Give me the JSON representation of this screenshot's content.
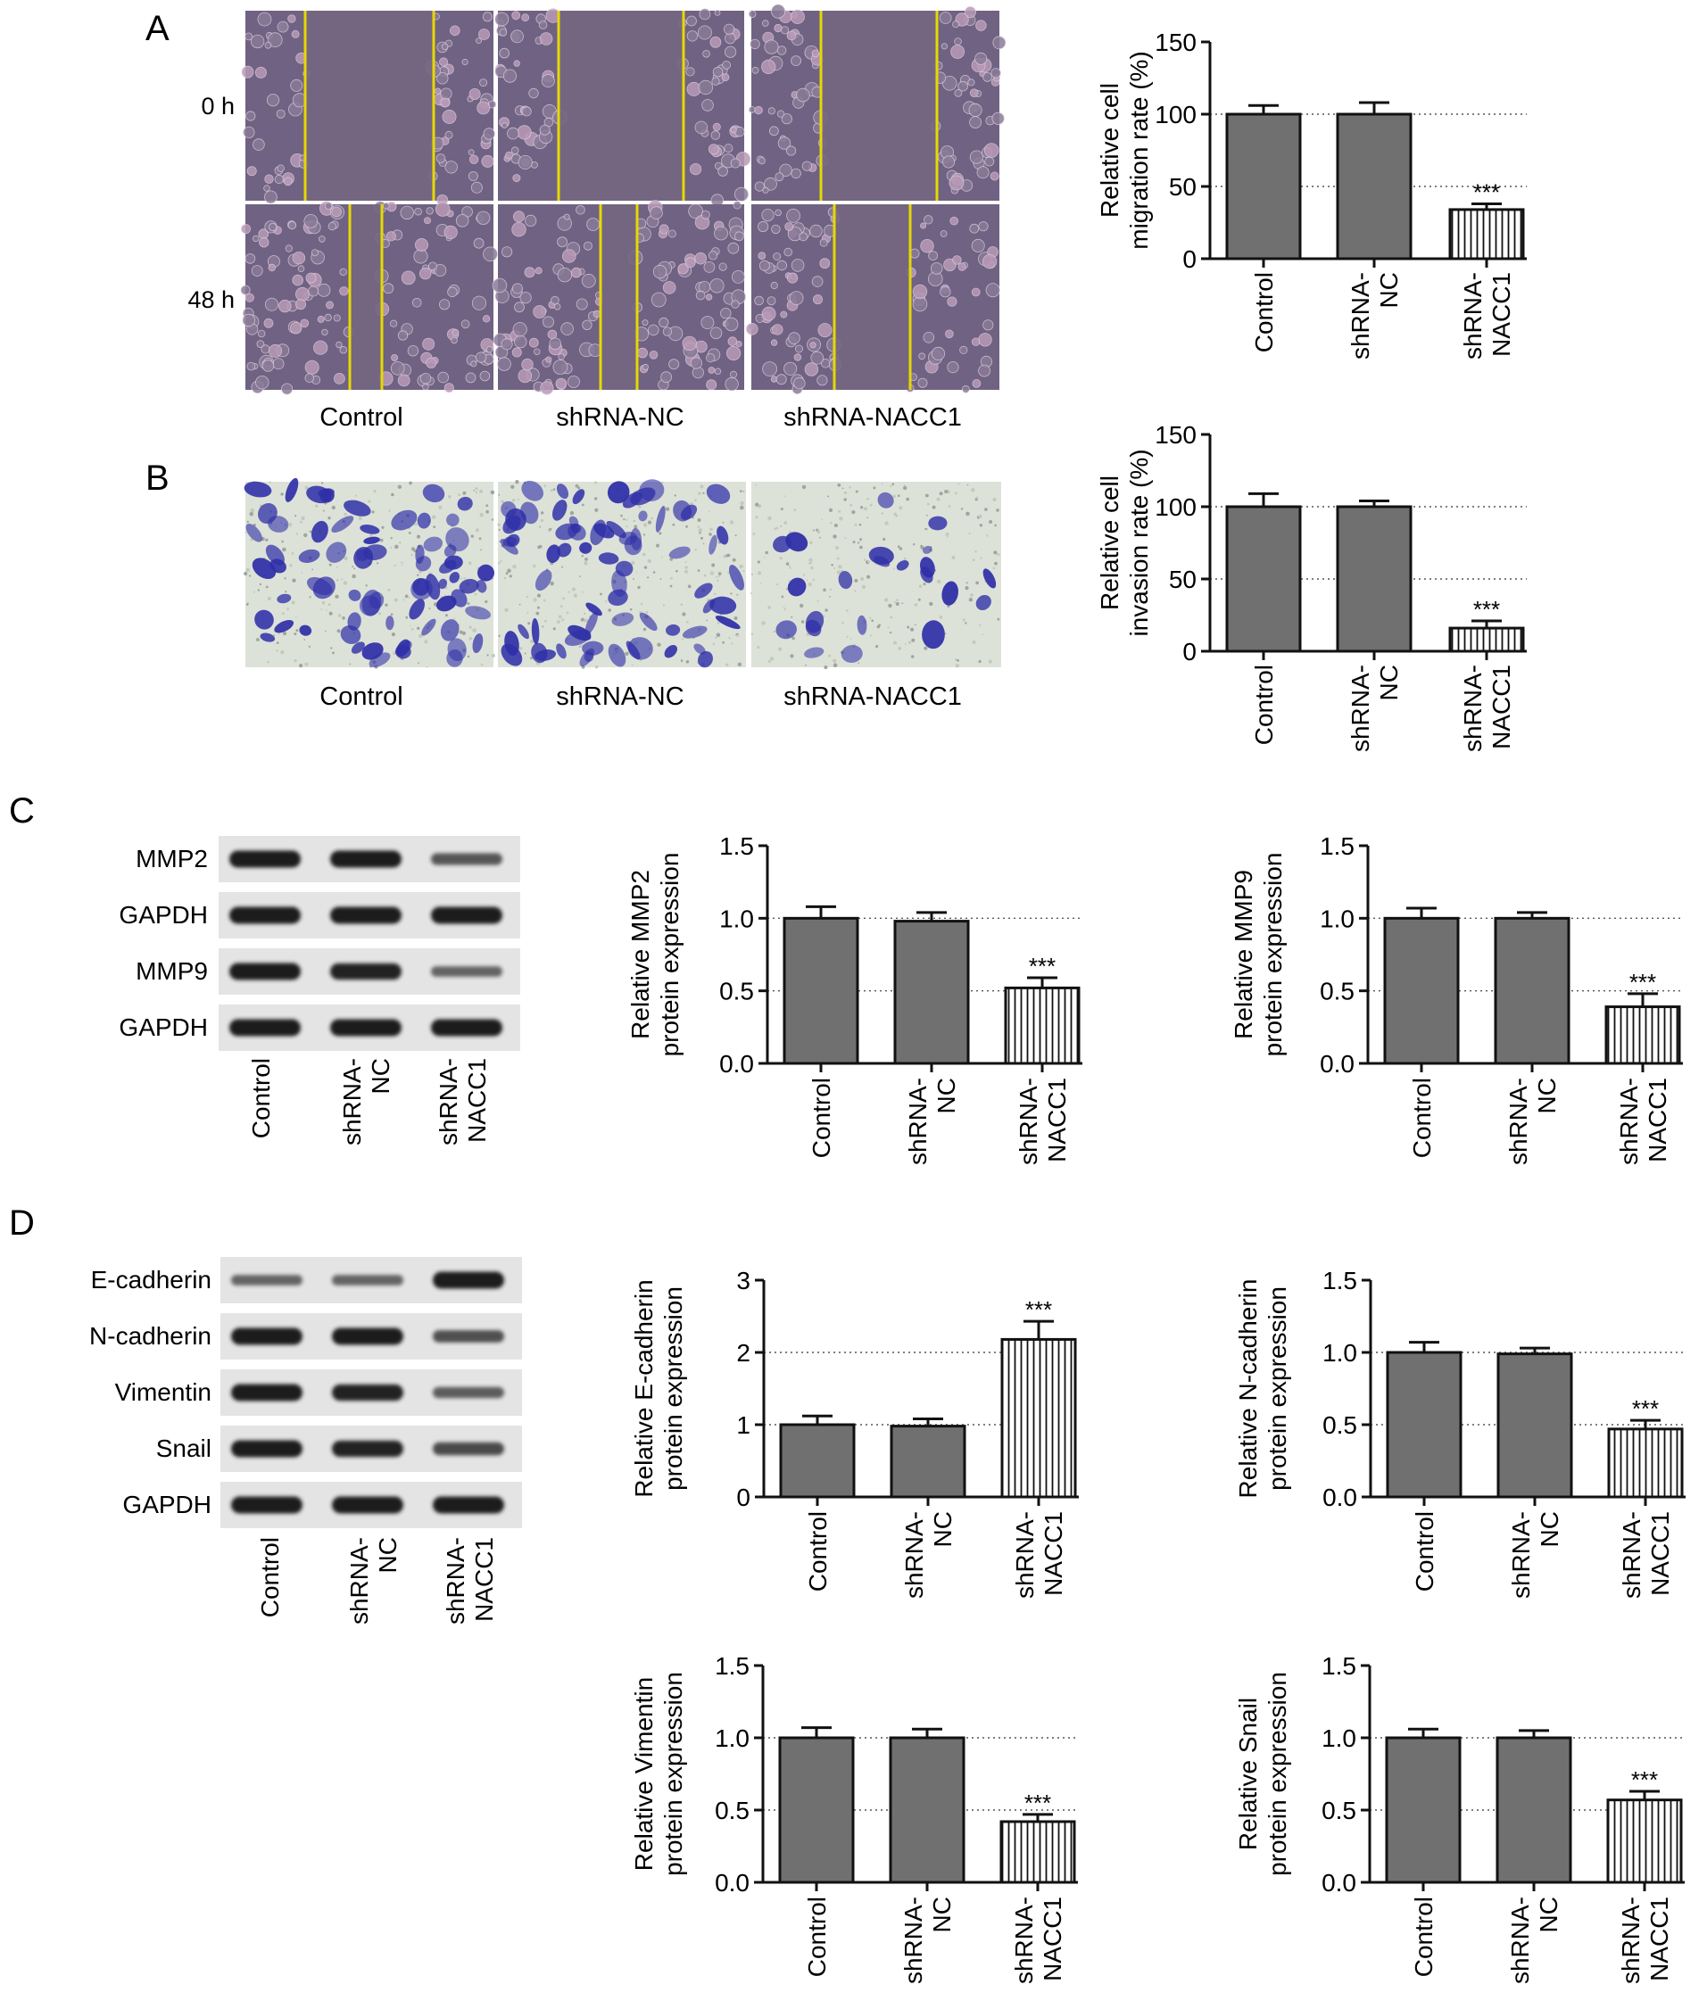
{
  "panels": {
    "A": {
      "letter": "A",
      "row_labels": [
        "0 h",
        "48 h"
      ],
      "col_labels": [
        "Control",
        "shRNA-NC",
        "shRNA-NACC1"
      ]
    },
    "B": {
      "letter": "B",
      "col_labels": [
        "Control",
        "shRNA-NC",
        "shRNA-NACC1"
      ]
    },
    "C": {
      "letter": "C",
      "blot_labels": [
        "MMP2",
        "GAPDH",
        "MMP9",
        "GAPDH"
      ],
      "lane_labels": [
        [
          "Control"
        ],
        [
          "shRNA-",
          "NC"
        ],
        [
          "shRNA-",
          "NACC1"
        ]
      ]
    },
    "D": {
      "letter": "D",
      "blot_labels": [
        "E-cadherin",
        "N-cadherin",
        "Vimentin",
        "Snail",
        "GAPDH"
      ],
      "lane_labels": [
        [
          "Control"
        ],
        [
          "shRNA-",
          "NC"
        ],
        [
          "shRNA-",
          "NACC1"
        ]
      ]
    }
  },
  "colors": {
    "bar_fill": "#707070",
    "bar_stroke": "#111111",
    "stripe_fill": "#ffffff",
    "blot_bg": "#e4e4e4",
    "band": "#1a1a1a",
    "wound_line": "#e6d800",
    "cell_bg": "#6f6282",
    "stain_bg": "#dde2d8",
    "stain_cell": "#2f2fa8"
  },
  "chart_data": [
    {
      "id": "migration",
      "type": "bar",
      "categories": [
        [
          "Control"
        ],
        [
          "shRNA-",
          "NC"
        ],
        [
          "shRNA-",
          "NACC1"
        ]
      ],
      "values": [
        100,
        100,
        34
      ],
      "errors": [
        6,
        8,
        4
      ],
      "significance": [
        "",
        "",
        "***"
      ],
      "ylabel": [
        "Relative cell",
        "migration rate (%)"
      ],
      "ylim": [
        0,
        150
      ],
      "yticks": [
        "0",
        "50",
        "100",
        "150"
      ],
      "ytick_values": [
        0,
        50,
        100,
        150
      ],
      "reference_lines": [
        50,
        100
      ],
      "patterns": [
        "solid",
        "solid",
        "striped"
      ]
    },
    {
      "id": "invasion",
      "type": "bar",
      "categories": [
        [
          "Control"
        ],
        [
          "shRNA-",
          "NC"
        ],
        [
          "shRNA-",
          "NACC1"
        ]
      ],
      "values": [
        100,
        100,
        16
      ],
      "errors": [
        9,
        4,
        5
      ],
      "significance": [
        "",
        "",
        "***"
      ],
      "ylabel": [
        "Relative cell",
        "invasion rate (%)"
      ],
      "ylim": [
        0,
        150
      ],
      "yticks": [
        "0",
        "50",
        "100",
        "150"
      ],
      "ytick_values": [
        0,
        50,
        100,
        150
      ],
      "reference_lines": [
        50,
        100
      ],
      "patterns": [
        "solid",
        "solid",
        "striped"
      ]
    },
    {
      "id": "mmp2",
      "type": "bar",
      "categories": [
        [
          "Control"
        ],
        [
          "shRNA-",
          "NC"
        ],
        [
          "shRNA-",
          "NACC1"
        ]
      ],
      "values": [
        1.0,
        0.98,
        0.52
      ],
      "errors": [
        0.08,
        0.06,
        0.07
      ],
      "significance": [
        "",
        "",
        "***"
      ],
      "ylabel": [
        "Relative MMP2",
        "protein expression"
      ],
      "ylim": [
        0,
        1.5
      ],
      "yticks": [
        "0.0",
        "0.5",
        "1.0",
        "1.5"
      ],
      "ytick_values": [
        0,
        0.5,
        1.0,
        1.5
      ],
      "reference_lines": [
        0.5,
        1.0
      ],
      "patterns": [
        "solid",
        "solid",
        "striped"
      ]
    },
    {
      "id": "mmp9",
      "type": "bar",
      "categories": [
        [
          "Control"
        ],
        [
          "shRNA-",
          "NC"
        ],
        [
          "shRNA-",
          "NACC1"
        ]
      ],
      "values": [
        1.0,
        1.0,
        0.39
      ],
      "errors": [
        0.07,
        0.04,
        0.09
      ],
      "significance": [
        "",
        "",
        "***"
      ],
      "ylabel": [
        "Relative MMP9",
        "protein expression"
      ],
      "ylim": [
        0,
        1.5
      ],
      "yticks": [
        "0.0",
        "0.5",
        "1.0",
        "1.5"
      ],
      "ytick_values": [
        0,
        0.5,
        1.0,
        1.5
      ],
      "reference_lines": [
        0.5,
        1.0
      ],
      "patterns": [
        "solid",
        "solid",
        "striped"
      ]
    },
    {
      "id": "ecadherin",
      "type": "bar",
      "categories": [
        [
          "Control"
        ],
        [
          "shRNA-",
          "NC"
        ],
        [
          "shRNA-",
          "NACC1"
        ]
      ],
      "values": [
        1.0,
        0.98,
        2.18
      ],
      "errors": [
        0.12,
        0.1,
        0.25
      ],
      "significance": [
        "",
        "",
        "***"
      ],
      "ylabel": [
        "Relative E-cadherin",
        "protein expression"
      ],
      "ylim": [
        0,
        3
      ],
      "yticks": [
        "0",
        "1",
        "2",
        "3"
      ],
      "ytick_values": [
        0,
        1,
        2,
        3
      ],
      "reference_lines": [
        1,
        2
      ],
      "patterns": [
        "solid",
        "solid",
        "striped"
      ]
    },
    {
      "id": "ncadherin",
      "type": "bar",
      "categories": [
        [
          "Control"
        ],
        [
          "shRNA-",
          "NC"
        ],
        [
          "shRNA-",
          "NACC1"
        ]
      ],
      "values": [
        1.0,
        0.99,
        0.47
      ],
      "errors": [
        0.07,
        0.04,
        0.06
      ],
      "significance": [
        "",
        "",
        "***"
      ],
      "ylabel": [
        "Relative N-cadherin",
        "protein expression"
      ],
      "ylim": [
        0,
        1.5
      ],
      "yticks": [
        "0.0",
        "0.5",
        "1.0",
        "1.5"
      ],
      "ytick_values": [
        0,
        0.5,
        1.0,
        1.5
      ],
      "reference_lines": [
        0.5,
        1.0
      ],
      "patterns": [
        "solid",
        "solid",
        "striped"
      ]
    },
    {
      "id": "vimentin",
      "type": "bar",
      "categories": [
        [
          "Control"
        ],
        [
          "shRNA-",
          "NC"
        ],
        [
          "shRNA-",
          "NACC1"
        ]
      ],
      "values": [
        1.0,
        1.0,
        0.42
      ],
      "errors": [
        0.07,
        0.06,
        0.05
      ],
      "significance": [
        "",
        "",
        "***"
      ],
      "ylabel": [
        "Relative Vimentin",
        "protein expression"
      ],
      "ylim": [
        0,
        1.5
      ],
      "yticks": [
        "0.0",
        "0.5",
        "1.0",
        "1.5"
      ],
      "ytick_values": [
        0,
        0.5,
        1.0,
        1.5
      ],
      "reference_lines": [
        0.5,
        1.0
      ],
      "patterns": [
        "solid",
        "solid",
        "striped"
      ]
    },
    {
      "id": "snail",
      "type": "bar",
      "categories": [
        [
          "Control"
        ],
        [
          "shRNA-",
          "NC"
        ],
        [
          "shRNA-",
          "NACC1"
        ]
      ],
      "values": [
        1.0,
        1.0,
        0.57
      ],
      "errors": [
        0.06,
        0.05,
        0.06
      ],
      "significance": [
        "",
        "",
        "***"
      ],
      "ylabel": [
        "Relative Snail",
        "protein expression"
      ],
      "ylim": [
        0,
        1.5
      ],
      "yticks": [
        "0.0",
        "0.5",
        "1.0",
        "1.5"
      ],
      "ytick_values": [
        0,
        0.5,
        1.0,
        1.5
      ],
      "reference_lines": [
        0.5,
        1.0
      ],
      "patterns": [
        "solid",
        "solid",
        "striped"
      ]
    }
  ],
  "blot_band_intensity": {
    "MMP2": [
      1.0,
      1.0,
      0.55
    ],
    "GAPDH_C1": [
      1.0,
      1.0,
      1.0
    ],
    "MMP9": [
      1.0,
      0.95,
      0.45
    ],
    "GAPDH_C2": [
      1.0,
      1.0,
      1.0
    ],
    "E-cadherin": [
      0.45,
      0.45,
      1.0
    ],
    "N-cadherin": [
      1.0,
      1.0,
      0.6
    ],
    "Vimentin": [
      1.0,
      0.95,
      0.5
    ],
    "Snail": [
      1.0,
      0.95,
      0.65
    ],
    "GAPDH_D": [
      1.0,
      1.0,
      1.0
    ]
  }
}
